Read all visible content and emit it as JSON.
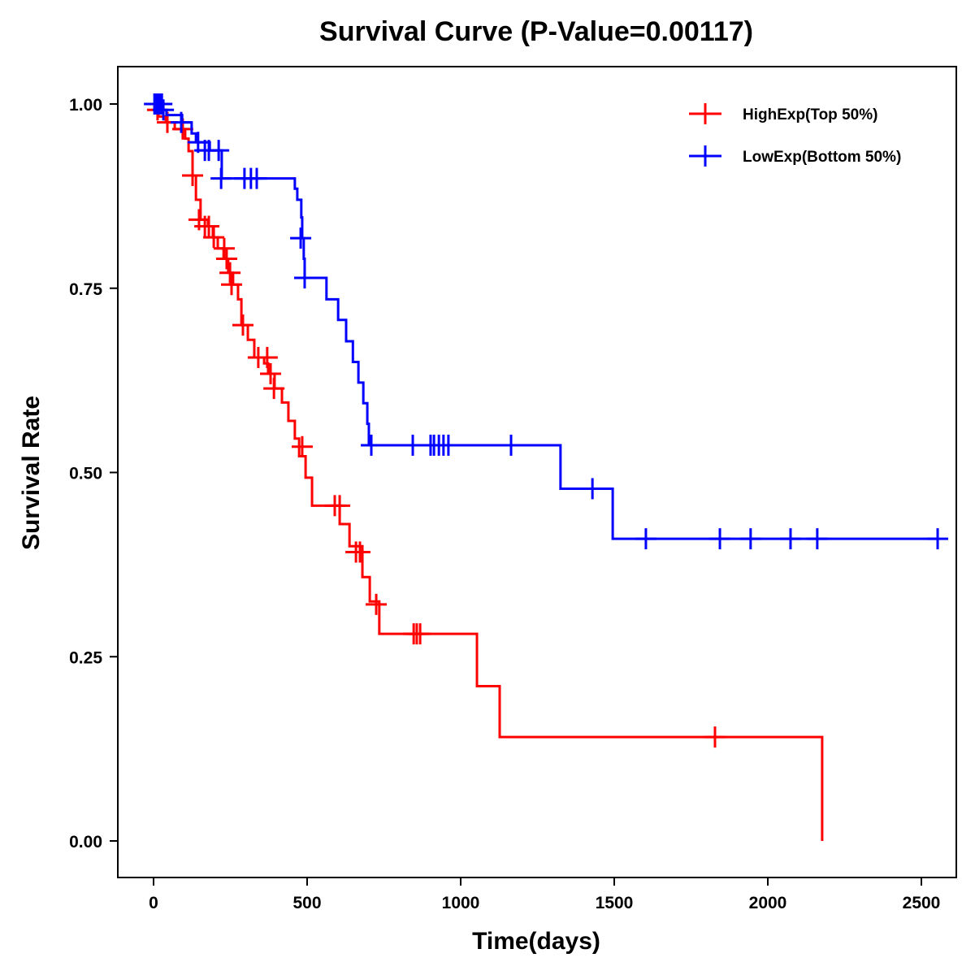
{
  "chart_data": {
    "type": "line",
    "subtype": "kaplan-meier-step",
    "title": "Survival Curve (P-Value=0.00117)",
    "xlabel": "Time(days)",
    "ylabel": "Survival Rate",
    "xlim": [
      -110,
      2590
    ],
    "ylim": [
      -0.05,
      1.05
    ],
    "xticks": [
      0,
      500,
      1000,
      1500,
      2000,
      2500
    ],
    "xtick_labels": [
      "0",
      "500",
      "1000",
      "1500",
      "2000",
      "2500"
    ],
    "yticks": [
      0,
      0.25,
      0.5,
      0.75,
      1.0
    ],
    "ytick_labels": [
      "0.00",
      "0.25",
      "0.50",
      "0.75",
      "1.00"
    ],
    "grid": false,
    "legend_position": "top-right",
    "series": [
      {
        "name": "HighExp(Top 50%)",
        "color": "#ff0000",
        "steps": [
          [
            0,
            1.0
          ],
          [
            3,
            0.992
          ],
          [
            16,
            0.983
          ],
          [
            40,
            0.975
          ],
          [
            69,
            0.966
          ],
          [
            103,
            0.953
          ],
          [
            114,
            0.936
          ],
          [
            127,
            0.903
          ],
          [
            138,
            0.87
          ],
          [
            153,
            0.843
          ],
          [
            177,
            0.834
          ],
          [
            193,
            0.819
          ],
          [
            209,
            0.804
          ],
          [
            228,
            0.79
          ],
          [
            243,
            0.771
          ],
          [
            259,
            0.755
          ],
          [
            275,
            0.735
          ],
          [
            286,
            0.7
          ],
          [
            307,
            0.68
          ],
          [
            328,
            0.656
          ],
          [
            360,
            0.648
          ],
          [
            373,
            0.634
          ],
          [
            394,
            0.614
          ],
          [
            418,
            0.595
          ],
          [
            439,
            0.57
          ],
          [
            460,
            0.546
          ],
          [
            474,
            0.522
          ],
          [
            495,
            0.493
          ],
          [
            516,
            0.455
          ],
          [
            606,
            0.43
          ],
          [
            638,
            0.4
          ],
          [
            680,
            0.358
          ],
          [
            704,
            0.325
          ],
          [
            735,
            0.281
          ],
          [
            1053,
            0.21
          ],
          [
            1127,
            0.141
          ],
          [
            2177,
            0.0
          ]
        ],
        "censored": [
          [
            13,
            0.992
          ],
          [
            45,
            0.975
          ],
          [
            95,
            0.966
          ],
          [
            127,
            0.903
          ],
          [
            148,
            0.843
          ],
          [
            167,
            0.834
          ],
          [
            180,
            0.834
          ],
          [
            196,
            0.819
          ],
          [
            230,
            0.804
          ],
          [
            238,
            0.79
          ],
          [
            249,
            0.771
          ],
          [
            254,
            0.755
          ],
          [
            291,
            0.7
          ],
          [
            341,
            0.656
          ],
          [
            370,
            0.656
          ],
          [
            381,
            0.634
          ],
          [
            392,
            0.614
          ],
          [
            484,
            0.535
          ],
          [
            590,
            0.455
          ],
          [
            606,
            0.455
          ],
          [
            659,
            0.392
          ],
          [
            672,
            0.392
          ],
          [
            725,
            0.321
          ],
          [
            847,
            0.281
          ],
          [
            857,
            0.281
          ],
          [
            868,
            0.281
          ],
          [
            1828,
            0.141
          ]
        ]
      },
      {
        "name": "LowExp(Bottom 50%)",
        "color": "#0000ff",
        "steps": [
          [
            0,
            1.0
          ],
          [
            13,
            0.992
          ],
          [
            42,
            0.985
          ],
          [
            93,
            0.975
          ],
          [
            124,
            0.96
          ],
          [
            138,
            0.948
          ],
          [
            183,
            0.937
          ],
          [
            222,
            0.899
          ],
          [
            460,
            0.885
          ],
          [
            468,
            0.87
          ],
          [
            481,
            0.846
          ],
          [
            484,
            0.818
          ],
          [
            489,
            0.79
          ],
          [
            492,
            0.764
          ],
          [
            563,
            0.735
          ],
          [
            601,
            0.707
          ],
          [
            627,
            0.678
          ],
          [
            649,
            0.65
          ],
          [
            667,
            0.622
          ],
          [
            683,
            0.594
          ],
          [
            696,
            0.566
          ],
          [
            701,
            0.537
          ],
          [
            1325,
            0.478
          ],
          [
            1495,
            0.41
          ]
        ],
        "censored": [
          [
            3,
            1.0
          ],
          [
            10,
            1.0
          ],
          [
            16,
            1.0
          ],
          [
            21,
            1.0
          ],
          [
            27,
            1.0
          ],
          [
            32,
            0.992
          ],
          [
            90,
            0.975
          ],
          [
            145,
            0.948
          ],
          [
            167,
            0.937
          ],
          [
            180,
            0.937
          ],
          [
            212,
            0.937
          ],
          [
            220,
            0.899
          ],
          [
            296,
            0.899
          ],
          [
            317,
            0.899
          ],
          [
            336,
            0.899
          ],
          [
            479,
            0.818
          ],
          [
            492,
            0.764
          ],
          [
            709,
            0.537
          ],
          [
            844,
            0.537
          ],
          [
            902,
            0.537
          ],
          [
            913,
            0.537
          ],
          [
            929,
            0.537
          ],
          [
            944,
            0.537
          ],
          [
            960,
            0.537
          ],
          [
            1164,
            0.537
          ],
          [
            1429,
            0.478
          ],
          [
            1603,
            0.41
          ],
          [
            1844,
            0.41
          ],
          [
            1944,
            0.41
          ],
          [
            2074,
            0.41
          ],
          [
            2161,
            0.41
          ],
          [
            2553,
            0.41
          ]
        ],
        "end_x": 2553
      }
    ]
  }
}
